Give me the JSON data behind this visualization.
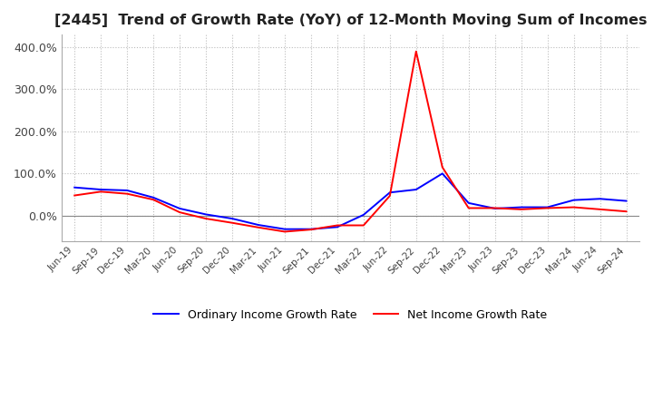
{
  "title": "[2445]  Trend of Growth Rate (YoY) of 12-Month Moving Sum of Incomes",
  "title_fontsize": 11.5,
  "background_color": "#ffffff",
  "grid_color": "#bbbbbb",
  "x_labels": [
    "Jun-19",
    "Sep-19",
    "Dec-19",
    "Mar-20",
    "Jun-20",
    "Sep-20",
    "Dec-20",
    "Mar-21",
    "Jun-21",
    "Sep-21",
    "Dec-21",
    "Mar-22",
    "Jun-22",
    "Sep-22",
    "Dec-22",
    "Mar-23",
    "Jun-23",
    "Sep-23",
    "Dec-23",
    "Mar-24",
    "Jun-24",
    "Sep-24"
  ],
  "ordinary_income": [
    0.67,
    0.62,
    0.6,
    0.43,
    0.17,
    0.03,
    -0.07,
    -0.22,
    -0.32,
    -0.32,
    -0.27,
    0.02,
    0.55,
    0.62,
    1.0,
    0.3,
    0.17,
    0.2,
    0.2,
    0.37,
    0.4,
    0.35
  ],
  "net_income": [
    0.48,
    0.57,
    0.52,
    0.38,
    0.08,
    -0.07,
    -0.17,
    -0.28,
    -0.38,
    -0.33,
    -0.23,
    -0.23,
    0.47,
    3.9,
    1.15,
    0.18,
    0.18,
    0.15,
    0.18,
    0.2,
    0.15,
    0.1
  ],
  "ordinary_color": "#0000ff",
  "net_color": "#ff0000",
  "line_width": 1.4,
  "ylim": [
    -0.6,
    4.3
  ],
  "ytick_vals": [
    0.0,
    1.0,
    2.0,
    3.0,
    4.0
  ],
  "ytick_labels": [
    "0.0%",
    "100.0%",
    "200.0%",
    "300.0%",
    "400.0%"
  ],
  "legend_ordinary": "Ordinary Income Growth Rate",
  "legend_net": "Net Income Growth Rate"
}
